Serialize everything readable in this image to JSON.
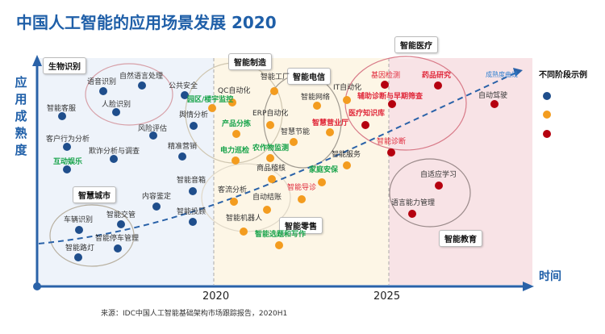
{
  "title": "中国人工智能的应用场景发展 2020",
  "y_axis_label": "应用成熟度",
  "x_axis_label": "时间",
  "ticks": [
    "2020",
    "2025"
  ],
  "source": "来源：IDC中国人工智能基础架构市场跟踪报告，2020H1",
  "curve_label": "成熟度曲线",
  "legend": {
    "title": "不同阶段示例",
    "colors": [
      "#1f4e8c",
      "#f39c1f",
      "#b5000f"
    ]
  },
  "groups": [
    "生物识别",
    "智慧城市",
    "智能制造",
    "智能电信",
    "智能零售",
    "智能医疗",
    "智能教育"
  ],
  "items": [
    {
      "text": "语音识别",
      "stage": 1,
      "style": ""
    },
    {
      "text": "自然语言处理",
      "stage": 1,
      "style": ""
    },
    {
      "text": "人脸识别",
      "stage": 1,
      "style": ""
    },
    {
      "text": "公共安全",
      "stage": 1,
      "style": ""
    },
    {
      "text": "智能客服",
      "stage": 1,
      "style": ""
    },
    {
      "text": "风险评估",
      "stage": 1,
      "style": ""
    },
    {
      "text": "舆情分析",
      "stage": 1,
      "style": ""
    },
    {
      "text": "客户行为分析",
      "stage": 1,
      "style": ""
    },
    {
      "text": "欺诈分析与调查",
      "stage": 1,
      "style": ""
    },
    {
      "text": "精准营销",
      "stage": 1,
      "style": ""
    },
    {
      "text": "互动娱乐",
      "stage": 1,
      "style": "green"
    },
    {
      "text": "智能音箱",
      "stage": 1,
      "style": ""
    },
    {
      "text": "内容鉴定",
      "stage": 1,
      "style": ""
    },
    {
      "text": "智能投顾",
      "stage": 1,
      "style": ""
    },
    {
      "text": "车辆识别",
      "stage": 1,
      "style": ""
    },
    {
      "text": "智能交管",
      "stage": 1,
      "style": ""
    },
    {
      "text": "智能停车管理",
      "stage": 1,
      "style": ""
    },
    {
      "text": "智能路灯",
      "stage": 1,
      "style": ""
    },
    {
      "text": "QC自动化",
      "stage": 2,
      "style": ""
    },
    {
      "text": "园区/楼宇监控",
      "stage": 2,
      "style": "green"
    },
    {
      "text": "智能工厂",
      "stage": 2,
      "style": ""
    },
    {
      "text": "智能网络",
      "stage": 2,
      "style": ""
    },
    {
      "text": "IT自动化",
      "stage": 2,
      "style": ""
    },
    {
      "text": "ERP自动化",
      "stage": 2,
      "style": ""
    },
    {
      "text": "产品分拣",
      "stage": 2,
      "style": "green"
    },
    {
      "text": "智慧节能",
      "stage": 2,
      "style": ""
    },
    {
      "text": "智慧营业厅",
      "stage": 2,
      "style": "redb"
    },
    {
      "text": "电力巡检",
      "stage": 2,
      "style": "green"
    },
    {
      "text": "农作物监测",
      "stage": 2,
      "style": "green"
    },
    {
      "text": "智能服务",
      "stage": 2,
      "style": ""
    },
    {
      "text": "商品稽核",
      "stage": 2,
      "style": ""
    },
    {
      "text": "家庭安保",
      "stage": 2,
      "style": "green"
    },
    {
      "text": "客流分析",
      "stage": 2,
      "style": ""
    },
    {
      "text": "自动结账",
      "stage": 2,
      "style": ""
    },
    {
      "text": "智能导诊",
      "stage": 2,
      "style": "red"
    },
    {
      "text": "智能机器人",
      "stage": 2,
      "style": ""
    },
    {
      "text": "智能选题和写作",
      "stage": 2,
      "style": "green"
    },
    {
      "text": "基因检测",
      "stage": 3,
      "style": "red"
    },
    {
      "text": "药品研究",
      "stage": 3,
      "style": "redb"
    },
    {
      "text": "辅助诊断与早期筛查",
      "stage": 3,
      "style": "redb"
    },
    {
      "text": "医疗知识库",
      "stage": 3,
      "style": "redb"
    },
    {
      "text": "智能诊断",
      "stage": 3,
      "style": "red"
    },
    {
      "text": "自动驾驶",
      "stage": 3,
      "style": ""
    },
    {
      "text": "自适应学习",
      "stage": 3,
      "style": ""
    },
    {
      "text": "语言能力管理",
      "stage": 3,
      "style": ""
    }
  ]
}
